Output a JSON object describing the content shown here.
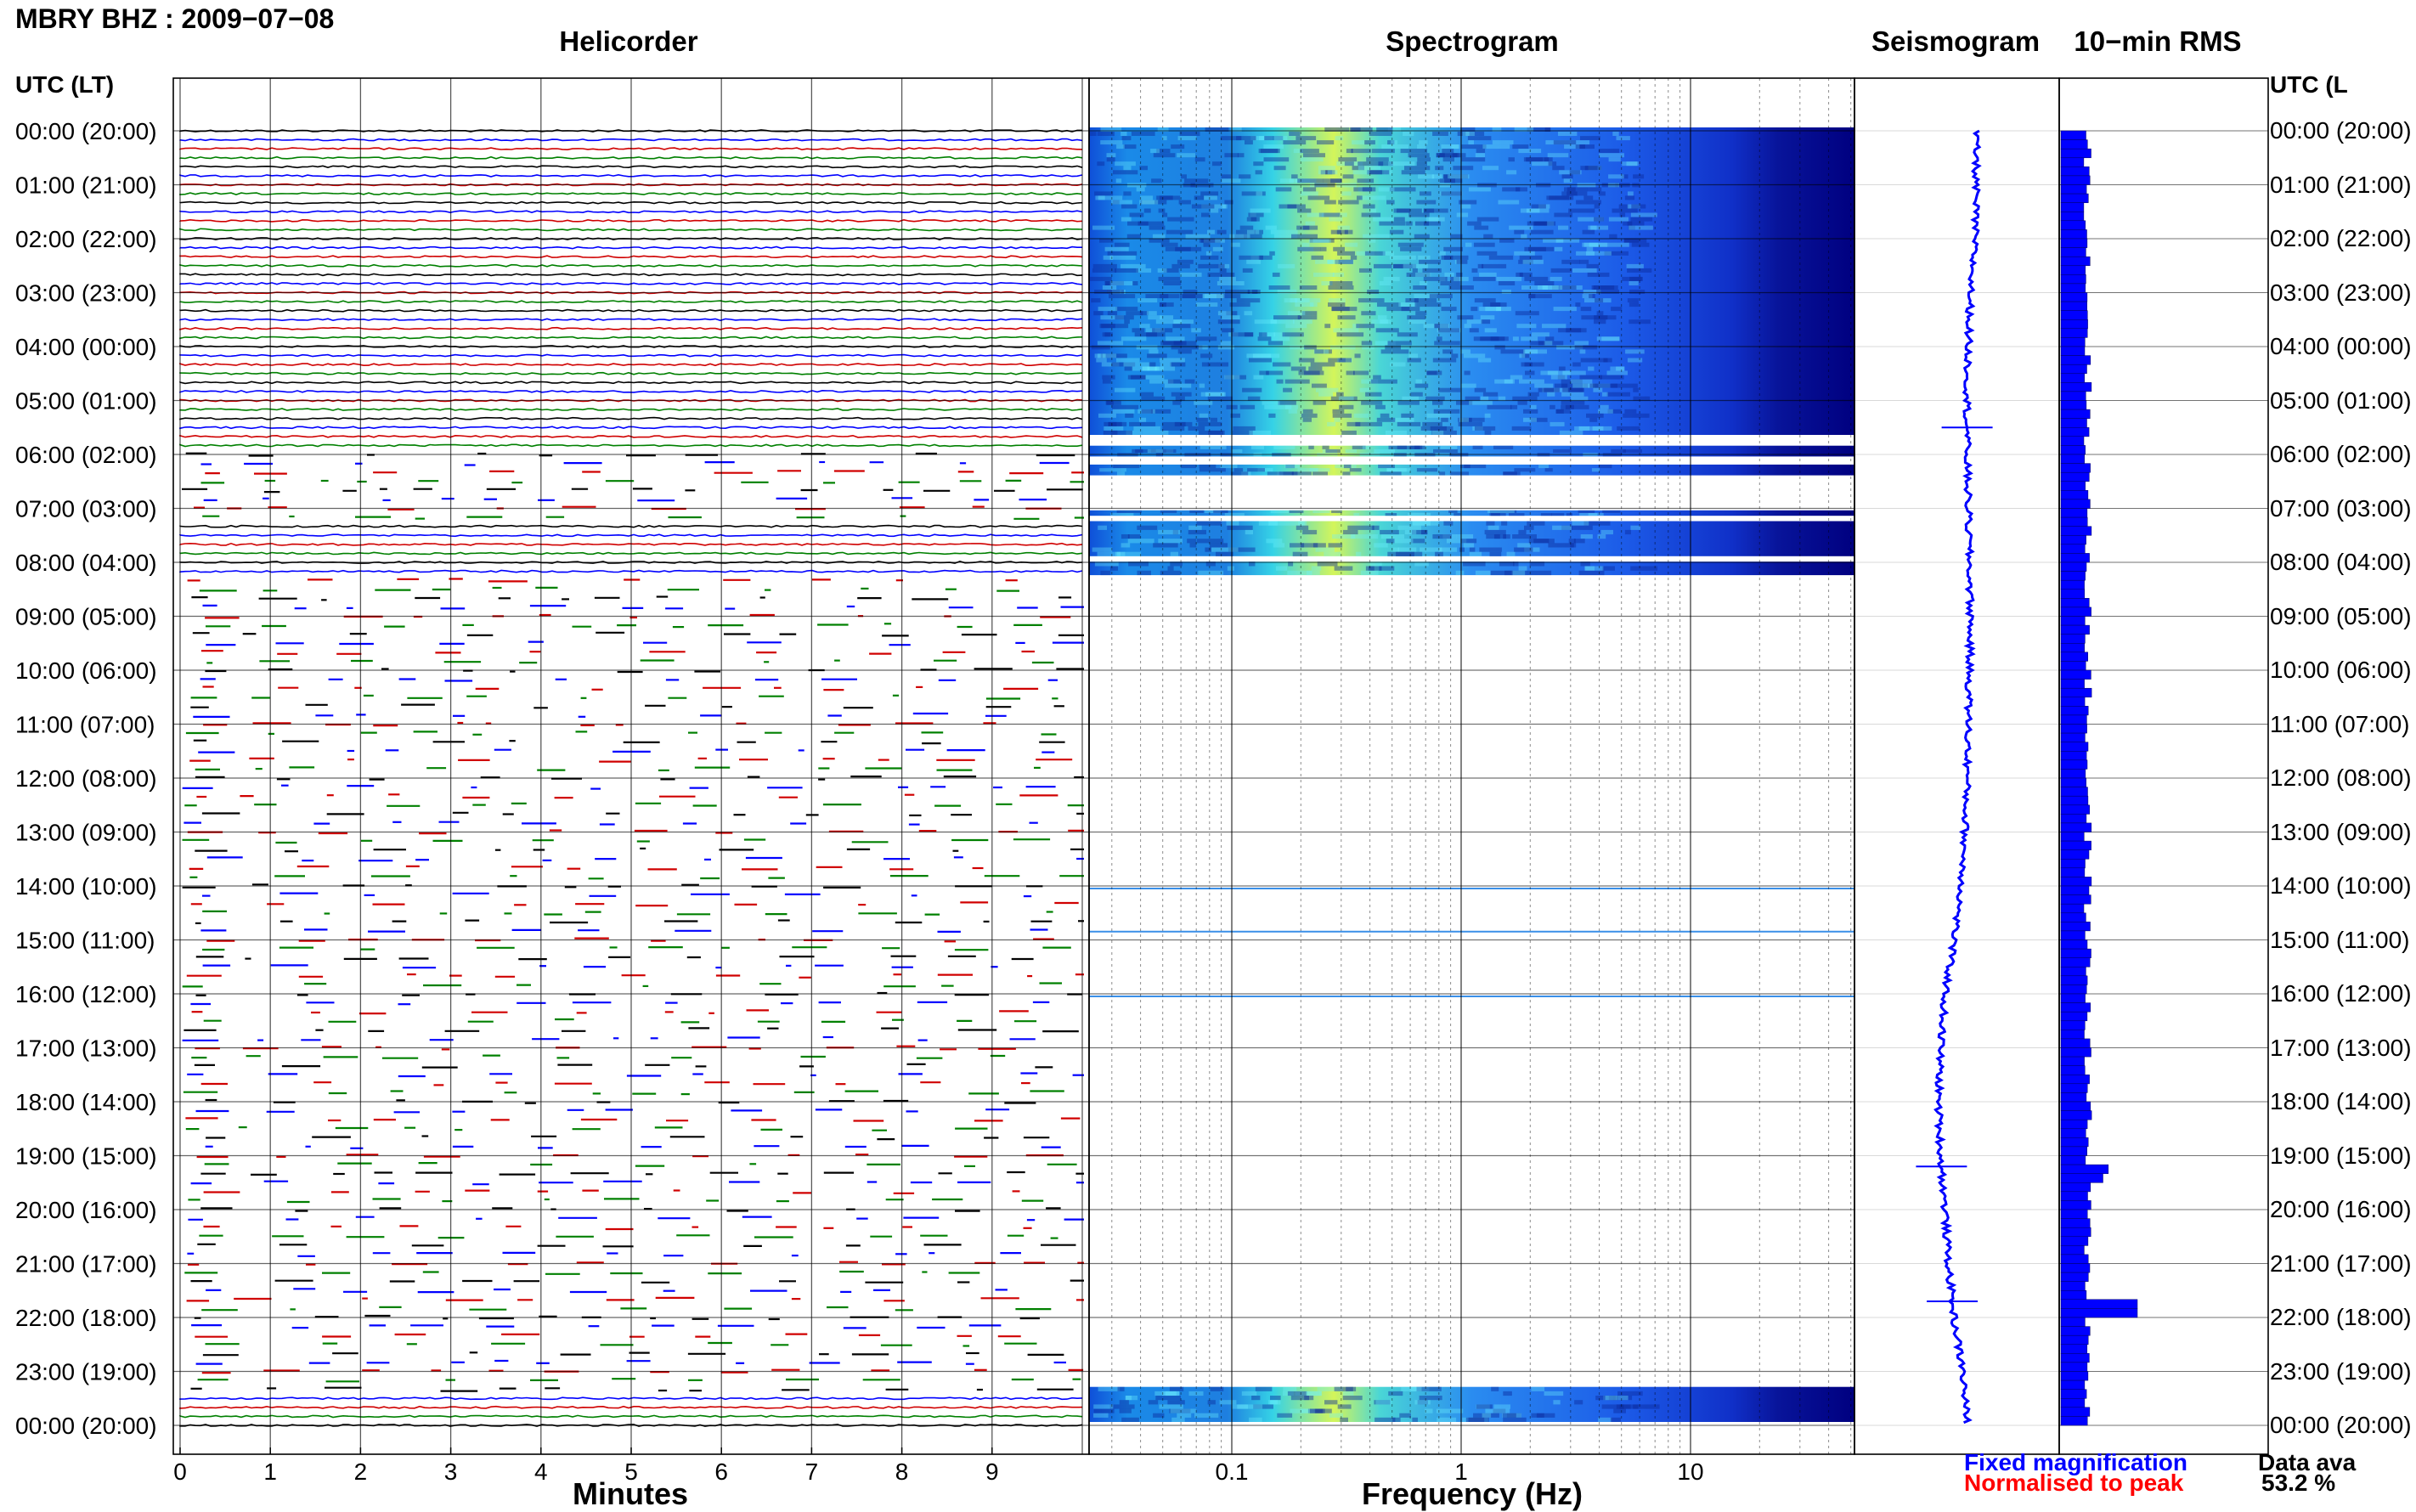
{
  "page": {
    "title": "MBRY BHZ : 2009−07−08",
    "panels": {
      "helicorder": "Helicorder",
      "spectrogram": "Spectrogram",
      "seismogram": "Seismogram",
      "rms": "10−min RMS"
    },
    "axis_titles": {
      "minutes": "Minutes",
      "frequency": "Frequency (Hz)"
    },
    "utc_header_left": "UTC (LT)",
    "utc_header_right": "UTC (L",
    "legend": {
      "fixed": "Fixed magnification",
      "normalised": "Normalised to peak"
    },
    "availability": {
      "label": "Data ava",
      "value": "53.2 %"
    },
    "colors": {
      "fixed": "#0000ff",
      "normalised": "#ff0000",
      "trace_cycle": [
        "#000000",
        "#0000ff",
        "#ff0000",
        "#008000"
      ],
      "spectrogram_low": "#00008b",
      "spectrogram_high": "#ffff66",
      "rms_bar": "#0000ff"
    }
  },
  "chart_data": [
    {
      "type": "helicorder",
      "panel": "Helicorder",
      "xlabel": "Minutes",
      "xlim": [
        0,
        10
      ],
      "x_ticks": [
        "0",
        "1",
        "2",
        "3",
        "4",
        "5",
        "6",
        "7",
        "8",
        "9"
      ],
      "y_tick_labels": [
        "00:00 (20:00)",
        "01:00 (21:00)",
        "02:00 (22:00)",
        "03:00 (23:00)",
        "04:00 (00:00)",
        "05:00 (01:00)",
        "06:00 (02:00)",
        "07:00 (03:00)",
        "08:00 (04:00)",
        "09:00 (05:00)",
        "10:00 (06:00)",
        "11:00 (07:00)",
        "12:00 (08:00)",
        "13:00 (09:00)",
        "14:00 (10:00)",
        "15:00 (11:00)",
        "16:00 (12:00)",
        "17:00 (13:00)",
        "18:00 (14:00)",
        "19:00 (15:00)",
        "20:00 (16:00)",
        "21:00 (17:00)",
        "22:00 (18:00)",
        "23:00 (19:00)",
        "00:00 (20:00)"
      ],
      "ylim_hours_utc": [
        0,
        24
      ],
      "lines_per_hour": 6,
      "continuous_intervals_utc_hours": [
        [
          0,
          6.0
        ],
        [
          7.25,
          8.25
        ],
        [
          23.35,
          24
        ]
      ],
      "gappy_intervals_utc_hours": [
        [
          6.0,
          7.25
        ],
        [
          8.25,
          23.35
        ]
      ],
      "trace_color_cycle": [
        "black",
        "blue",
        "red",
        "green"
      ]
    },
    {
      "type": "heatmap",
      "panel": "Spectrogram",
      "xlabel": "Frequency (Hz)",
      "x_scale": "log",
      "xlim": [
        0.02,
        50
      ],
      "x_tick_labels": [
        "0.1",
        "1",
        "10"
      ],
      "ylim_hours_utc": [
        0,
        24
      ],
      "peak_frequency_hz": 0.4,
      "data_intervals_utc_hours": [
        [
          0,
          5.7
        ],
        [
          5.9,
          6.1
        ],
        [
          6.25,
          6.45
        ],
        [
          7.1,
          7.2
        ],
        [
          7.3,
          7.95
        ],
        [
          8.05,
          8.3
        ],
        [
          23.35,
          24
        ]
      ],
      "thin_lines_utc_hours": [
        14.0,
        14.8,
        16.0
      ]
    },
    {
      "type": "line",
      "panel": "Seismogram",
      "ylim_hours_utc": [
        0,
        24
      ],
      "x_offset": [
        0.2,
        0.2,
        0.19,
        0.15,
        0.13,
        0.12,
        0.12,
        0.13,
        0.14,
        0.15,
        0.14,
        0.13,
        0.12,
        0.1,
        0.07,
        0.0,
        -0.08,
        -0.12,
        -0.14,
        -0.12,
        -0.08,
        -0.05,
        0.0,
        0.08,
        0.12
      ],
      "x_hours": [
        0,
        1,
        2,
        3,
        4,
        5,
        6,
        7,
        8,
        9,
        10,
        11,
        12,
        13,
        14,
        15,
        16,
        17,
        18,
        19,
        20,
        21,
        22,
        23,
        24
      ],
      "spikes_utc_hours": [
        5.5,
        19.2,
        21.7
      ]
    },
    {
      "type": "bar",
      "panel": "10−min RMS",
      "orientation": "horizontal",
      "ylim_hours_utc": [
        0,
        24
      ],
      "bins_per_hour": 6,
      "base_value": 0.35,
      "events": [
        {
          "hour": 19.15,
          "value": 0.62
        },
        {
          "hour": 21.75,
          "value": 1.0
        },
        {
          "hour": 19.3,
          "value": 0.55
        }
      ]
    }
  ]
}
